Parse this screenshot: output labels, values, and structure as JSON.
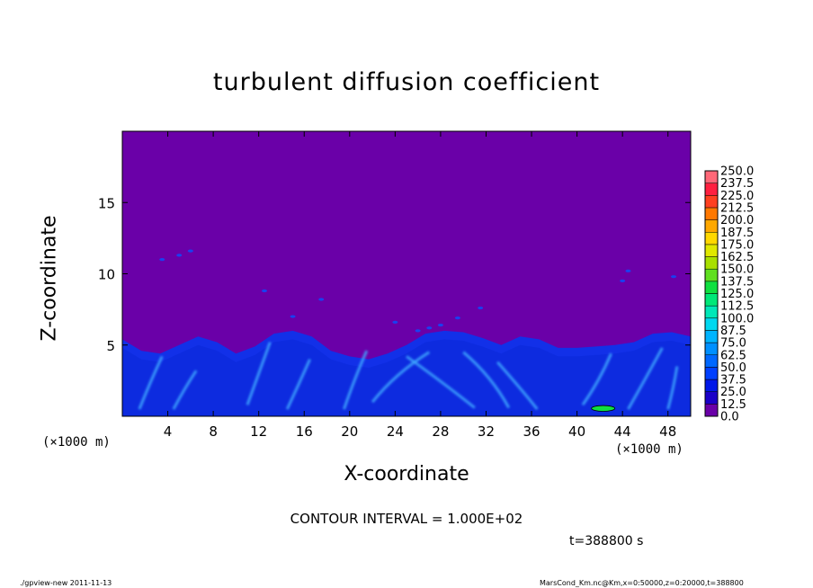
{
  "chart_data": {
    "type": "heatmap",
    "title": "turbulent diffusion coefficient",
    "xlabel": "X-coordinate",
    "ylabel": "Z-coordinate",
    "x_unit": "(×1000 m)",
    "y_unit": "(×1000 m)",
    "xlim": [
      0,
      50
    ],
    "ylim": [
      0,
      20
    ],
    "x_ticks": [
      4,
      8,
      12,
      16,
      20,
      24,
      28,
      32,
      36,
      40,
      44,
      48
    ],
    "y_ticks": [
      5,
      10,
      15
    ],
    "colorbar": {
      "levels": [
        "0.0",
        "12.5",
        "25.0",
        "37.5",
        "50.0",
        "62.5",
        "75.0",
        "87.5",
        "100.0",
        "112.5",
        "125.0",
        "137.5",
        "150.0",
        "162.5",
        "175.0",
        "187.5",
        "200.0",
        "212.5",
        "225.0",
        "237.5",
        "250.0"
      ],
      "colors": [
        "#6a00a8",
        "#1a00c8",
        "#0018e8",
        "#0040ff",
        "#0068ff",
        "#0090ff",
        "#00b4ff",
        "#00d8f0",
        "#00e8b8",
        "#00e878",
        "#10e040",
        "#60e020",
        "#a8e000",
        "#e0e800",
        "#ffd800",
        "#ffa800",
        "#ff7800",
        "#ff4020",
        "#ff2040",
        "#ff6878",
        "#ff98a0"
      ]
    },
    "field": {
      "background_color": "#6a00a8",
      "boundary_layer_top_km": [
        5.4,
        4.6,
        4.4,
        5.0,
        5.6,
        5.2,
        4.4,
        4.9,
        5.8,
        6.0,
        5.6,
        4.6,
        4.2,
        4.0,
        4.4,
        5.0,
        5.8,
        6.0,
        5.9,
        5.5,
        5.0,
        5.6,
        5.4,
        4.8,
        4.8,
        4.9,
        5.0,
        5.2,
        5.8,
        5.9,
        5.6
      ]
    },
    "contour_interval": "CONTOUR INTERVAL = 1.000E+02"
  },
  "labels": {
    "time": "t=388800 s",
    "footer_left": "./gpview-new   2011-11-13",
    "footer_right": "MarsCond_Km.nc@Km,x=0:50000,z=0:20000,t=388800"
  }
}
